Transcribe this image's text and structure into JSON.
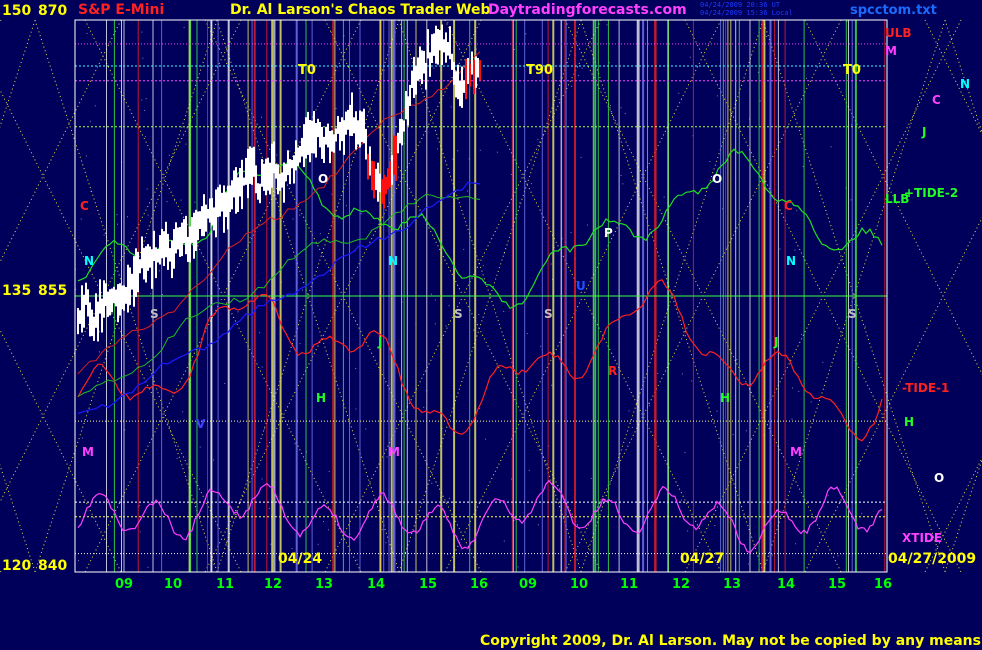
{
  "header": {
    "symbol": "S&P E-Mini",
    "title": "Dr. Al Larson's Chaos Trader Web",
    "site": "Daytradingforecasts.com",
    "timestamp_1": "04/24/2009 20:36 UT",
    "timestamp_2": "04/24/2009 15:36 Local",
    "file": "spcctom.txt"
  },
  "copyright": "Copyright 2009, Dr. Al Larson. May not be copied by any means.",
  "colors": {
    "background": "#00005a",
    "frame": "#ffffff",
    "price_bars": "#ffffff",
    "price_bars_down": "#ff1010",
    "tide1": "#ff2020",
    "tide2": "#20dd20",
    "xtide": "#ff40ff",
    "blue_line": "#1a1aff",
    "tick_labels": "#ffff00",
    "hour_labels": "#00ff00",
    "diamond_grid": "#e0e040"
  },
  "chart_data": {
    "type": "line",
    "title": "S&P E-Mini",
    "y_axis_left": {
      "ticks": [
        {
          "left": "150",
          "right": "870"
        },
        {
          "left": "135",
          "right": "855"
        },
        {
          "left": "120",
          "right": "840"
        }
      ],
      "ylim": [
        840,
        870
      ]
    },
    "x_axis": {
      "hour_ticks": [
        "09",
        "10",
        "11",
        "12",
        "13",
        "14",
        "15",
        "16",
        "09",
        "10",
        "11",
        "12",
        "13",
        "14",
        "15",
        "16"
      ],
      "date_labels": [
        "04/24",
        "04/27",
        "04/27/2009"
      ]
    },
    "right_labels": [
      "ULB",
      "M",
      "N",
      "C",
      "J",
      "+TIDE-2",
      "LLB",
      "-TIDE-1",
      "H",
      "O",
      "XTIDE"
    ],
    "time_markers": [
      "T0",
      "T90",
      "T0"
    ],
    "planet_markers": [
      {
        "label": "C",
        "color": "#ff2020"
      },
      {
        "label": "N",
        "color": "#00ffff"
      },
      {
        "label": "S",
        "color": "#c0c0c0"
      },
      {
        "label": "H",
        "color": "#20ff20"
      },
      {
        "label": "M",
        "color": "#ff40ff"
      },
      {
        "label": "V",
        "color": "#4040ff"
      },
      {
        "label": "J",
        "color": "#20ff20"
      },
      {
        "label": "O",
        "color": "#ffffff"
      },
      {
        "label": "P",
        "color": "#ffffff"
      },
      {
        "label": "U",
        "color": "#2050ff"
      },
      {
        "label": "R",
        "color": "#ff2020"
      }
    ],
    "series": [
      {
        "name": "-TIDE-1",
        "color": "#ff2020"
      },
      {
        "name": "+TIDE-2",
        "color": "#20dd20"
      },
      {
        "name": "XTIDE",
        "color": "#ff40ff"
      }
    ],
    "price": {
      "start": 854,
      "end": 866.5,
      "high": 868.4,
      "low": 853.5
    }
  }
}
